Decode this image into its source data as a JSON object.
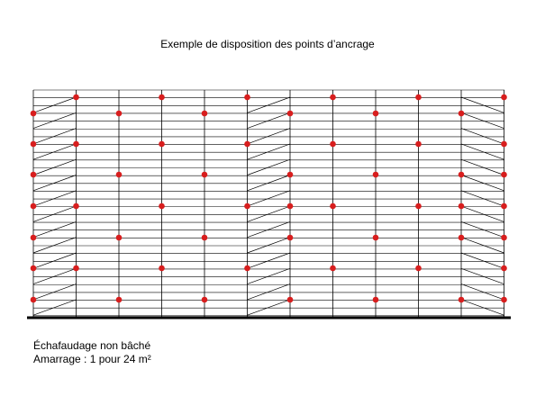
{
  "title": "Exemple de disposition des points d’ancrage",
  "caption": {
    "line1": "Échafaudage non bâché",
    "line2": "Amarrage : 1 pour 24 m²"
  }
}
